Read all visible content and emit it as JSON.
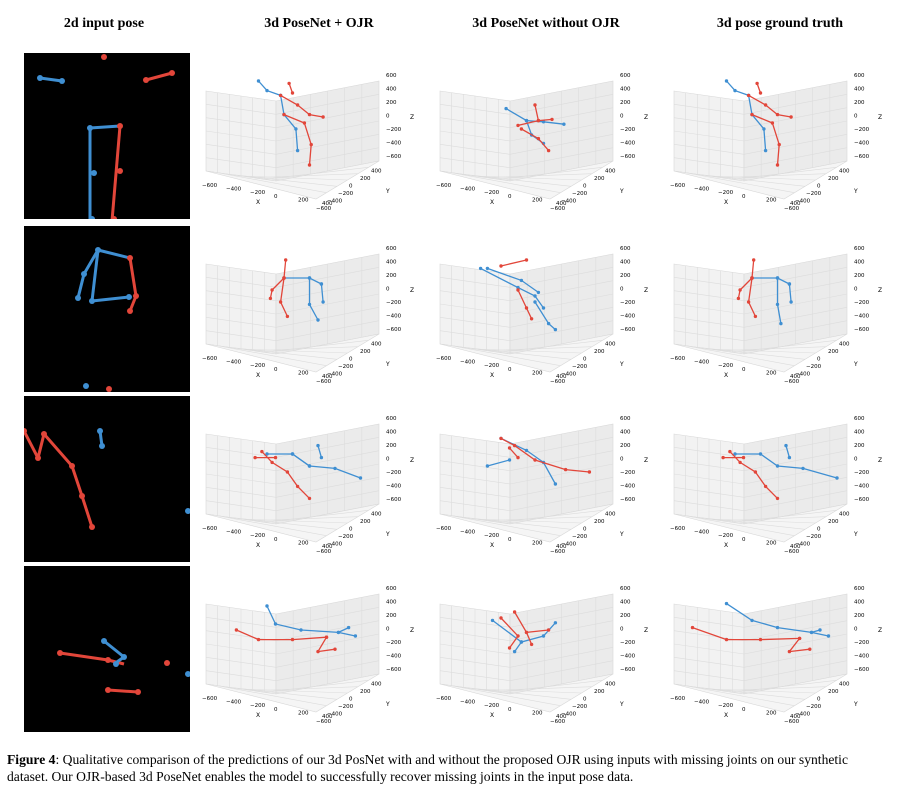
{
  "headers": {
    "col1": "2d input pose",
    "col2": "3d PoseNet + OJR",
    "col3": "3d PoseNet without OJR",
    "col4": "3d pose ground truth"
  },
  "caption": {
    "label": "Figure 4",
    "text": ": Qualitative comparison of the predictions of our 3d PosNet with and without the proposed OJR using inputs with missing joints on our synthetic dataset. Our OJR-based 3d PoseNet enables the model to successfully recover missing joints in the input pose data."
  },
  "axes": {
    "z_ticks": [
      "600",
      "400",
      "200",
      "0",
      "−200",
      "−400",
      "−600"
    ],
    "z_label": "Z",
    "x_ticks": [
      "−600",
      "−400",
      "−200",
      "0",
      "200",
      "400",
      "600"
    ],
    "x_label": "X",
    "y_ticks": [
      "600",
      "400",
      "200",
      "0",
      "−200",
      "−400",
      "−600"
    ],
    "y_label": "Y"
  },
  "colors": {
    "blue": "#3f8fd2",
    "red": "#e2463a"
  }
}
